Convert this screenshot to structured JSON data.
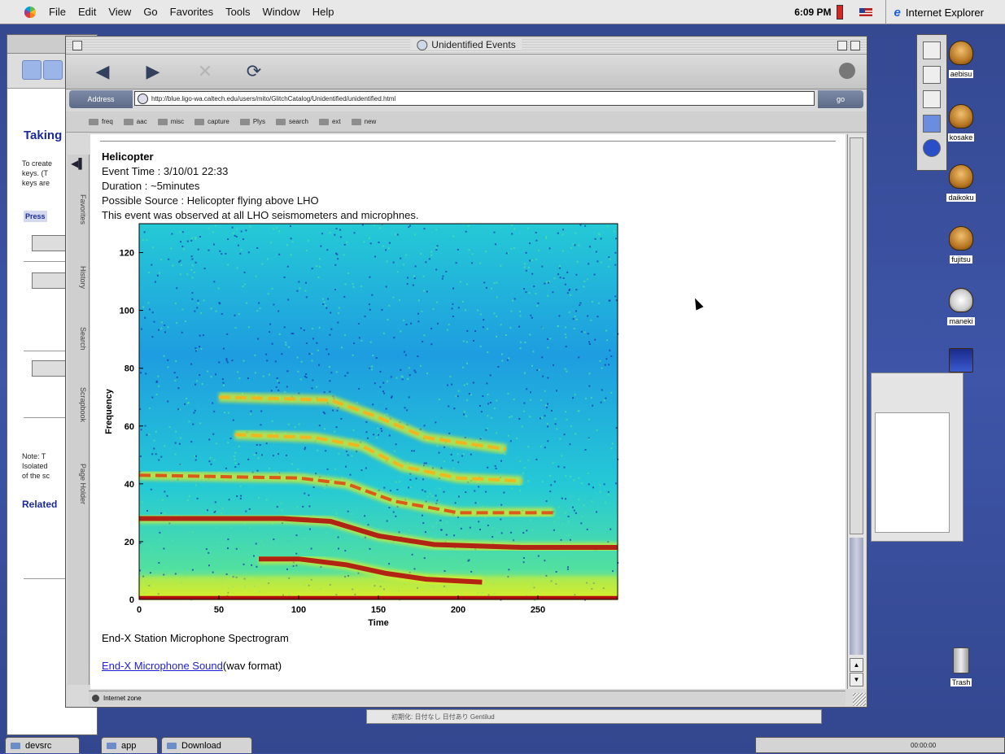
{
  "menubar": {
    "items": [
      "File",
      "Edit",
      "View",
      "Go",
      "Favorites",
      "Tools",
      "Window",
      "Help"
    ],
    "clock": "6:09 PM",
    "active_app": "Internet Explorer"
  },
  "background_window": {
    "title": "Taking",
    "text1": "To create\nkeys. (T\nkeys are",
    "button": "Press",
    "note": "Note: T\nIsolated\nof the sc",
    "related": "Related"
  },
  "desktop_icons": [
    "aebisu",
    "kosake",
    "daikoku",
    "fujitsu",
    "maneki",
    "",
    "",
    "Trash"
  ],
  "window": {
    "title": "Unidentified Events",
    "address_label": "Address",
    "address_value": "http://blue.ligo-wa.caltech.edu/users/mito/GlitchCatalog/Unidentified/unidentified.html",
    "go_label": "go",
    "favorites": [
      "freq",
      "aac",
      "misc",
      "capture",
      "Plys",
      "search",
      "ext",
      "new"
    ],
    "side_tabs": [
      "Favorites",
      "History",
      "Search",
      "Scrapbook",
      "Page Holder"
    ],
    "status": "Internet zone"
  },
  "page": {
    "event_title": "Helicopter",
    "event_time": "Event Time : 3/10/01 22:33",
    "duration": "Duration : ~5minutes",
    "source": "Possible Source : Helicopter flying above LHO",
    "observed": "This event was observed at all LHO seismometers and microphnes.",
    "caption": "End-X Station Microphone Spectrogram",
    "link_text": "End-X Microphone Sound",
    "link_suffix": "(wav format)"
  },
  "chart_data": {
    "type": "heatmap",
    "title": "",
    "xlabel": "Time",
    "ylabel": "Frequency",
    "xlim": [
      0,
      300
    ],
    "ylim": [
      0,
      130
    ],
    "x_ticks": [
      0,
      50,
      100,
      150,
      200,
      250
    ],
    "y_ticks": [
      0,
      20,
      40,
      60,
      80,
      100,
      120
    ],
    "colormap": [
      "#1a2fb0",
      "#1e9de0",
      "#25c9d6",
      "#52e0a0",
      "#d8ee2a",
      "#f5b21c",
      "#e04a14",
      "#b00e0e"
    ],
    "ridges": [
      {
        "points": [
          [
            75,
            14
          ],
          [
            100,
            14
          ],
          [
            130,
            12
          ],
          [
            155,
            9
          ],
          [
            180,
            7
          ],
          [
            215,
            6
          ]
        ],
        "intensity": 1.0
      },
      {
        "points": [
          [
            0,
            28
          ],
          [
            90,
            28
          ],
          [
            120,
            27
          ],
          [
            150,
            22
          ],
          [
            185,
            19
          ],
          [
            240,
            18
          ],
          [
            300,
            18
          ]
        ],
        "intensity": 0.85
      },
      {
        "points": [
          [
            0,
            43
          ],
          [
            100,
            42
          ],
          [
            130,
            40
          ],
          [
            160,
            34
          ],
          [
            200,
            30
          ],
          [
            260,
            30
          ]
        ],
        "intensity": 0.7
      },
      {
        "points": [
          [
            60,
            57
          ],
          [
            110,
            56
          ],
          [
            140,
            53
          ],
          [
            165,
            46
          ],
          [
            200,
            42
          ],
          [
            240,
            41
          ]
        ],
        "intensity": 0.55
      },
      {
        "points": [
          [
            50,
            70
          ],
          [
            120,
            69
          ],
          [
            150,
            63
          ],
          [
            180,
            56
          ],
          [
            230,
            52
          ]
        ],
        "intensity": 0.4
      }
    ]
  },
  "bottom_strip": {
    "text": "初期化:   日付なし   日付あり    Gentilud"
  },
  "taskbar": {
    "tasks": [
      "devsrc",
      "app",
      "Download"
    ],
    "control_strip": "00:00:00"
  }
}
